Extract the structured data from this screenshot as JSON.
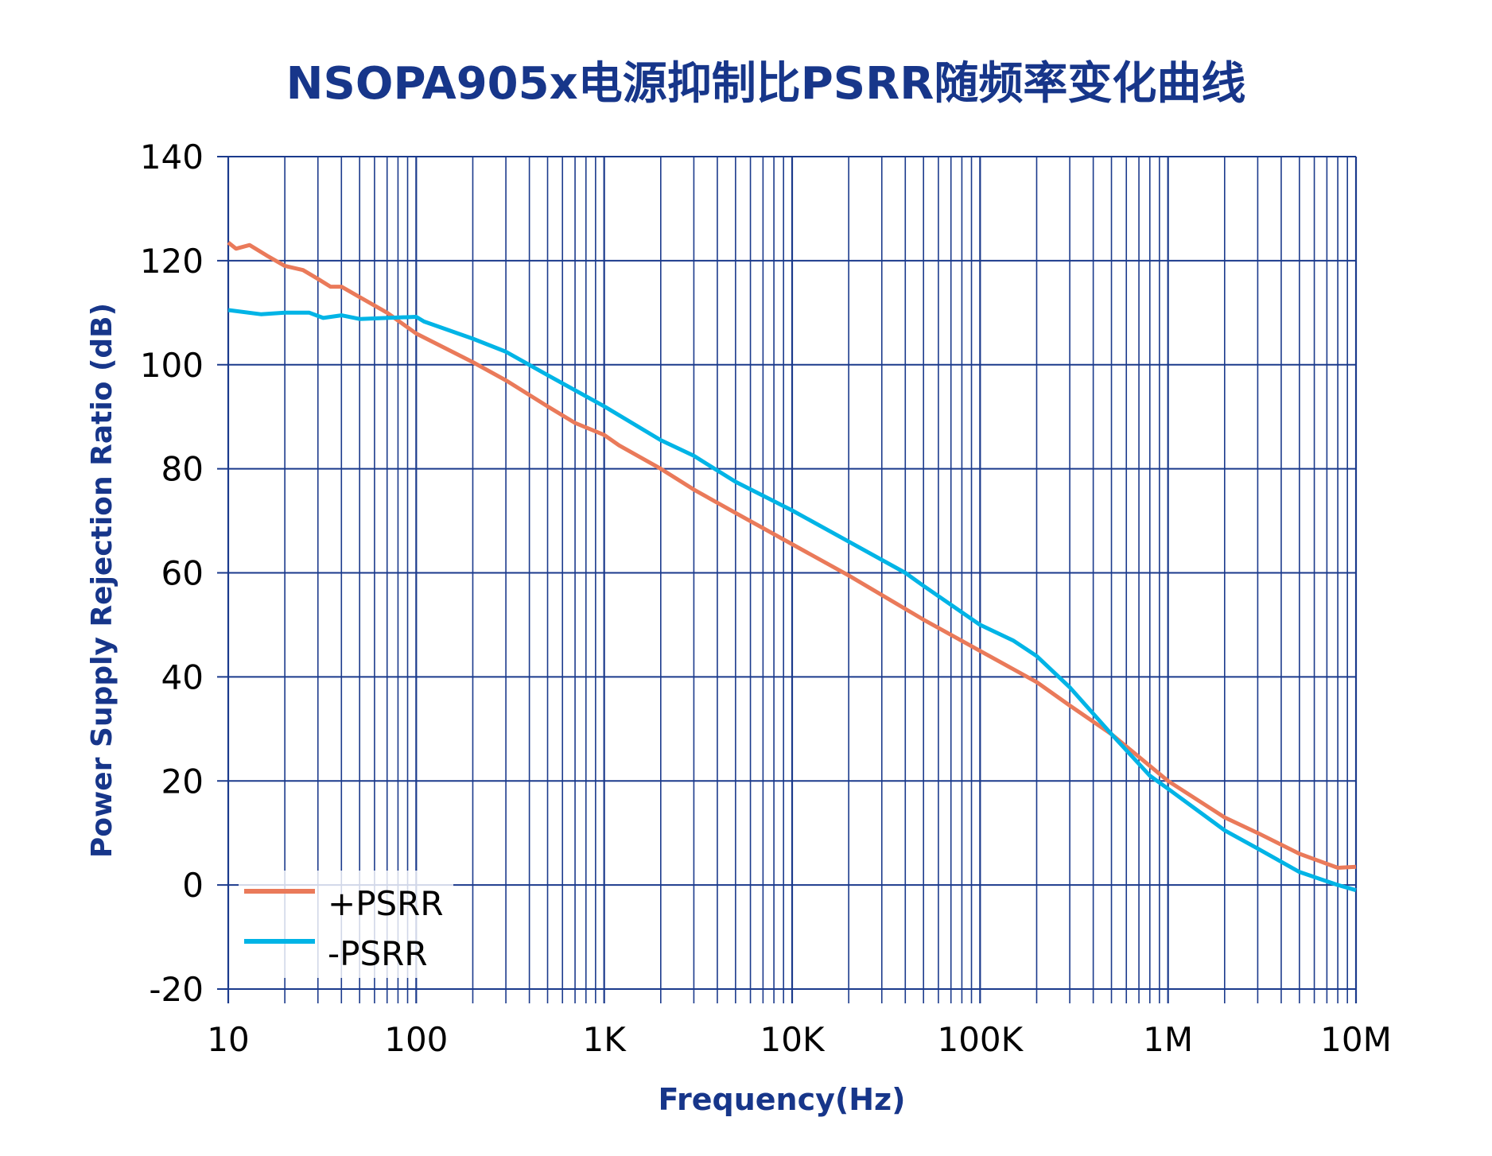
{
  "chart_data": {
    "type": "line",
    "title": "NSOPA905x电源抑制比PSRR随频率变化曲线",
    "xlabel": "Frequency(Hz)",
    "ylabel": "Power Supply Rejection Ratio (dB)",
    "x_scale": "log",
    "xlim": [
      10,
      10000000
    ],
    "ylim": [
      -20,
      140
    ],
    "x_ticks": [
      10,
      100,
      1000,
      10000,
      100000,
      1000000,
      10000000
    ],
    "x_tick_labels": [
      "10",
      "100",
      "1K",
      "10K",
      "100K",
      "1M",
      "10M"
    ],
    "y_ticks": [
      -20,
      0,
      20,
      40,
      60,
      80,
      100,
      120,
      140
    ],
    "y_tick_labels": [
      "-20",
      "0",
      "20",
      "40",
      "60",
      "80",
      "100",
      "120",
      "140"
    ],
    "grid": true,
    "legend_position": "bottom-left",
    "colors": {
      "grid": "#1b3a8c",
      "title": "#17368a",
      "plus": "#ea7a5a",
      "minus": "#00b4e6"
    },
    "series": [
      {
        "name": "+PSRR",
        "x": [
          10,
          11,
          13,
          16,
          20,
          25,
          30,
          35,
          40,
          50,
          70,
          100,
          200,
          300,
          500,
          700,
          1000,
          1200,
          2000,
          3000,
          5000,
          10000,
          20000,
          50000,
          100000,
          200000,
          300000,
          500000,
          1000000,
          2000000,
          3000000,
          5000000,
          8000000,
          10000000
        ],
        "y": [
          123.5,
          122.3,
          123,
          121,
          119,
          118.2,
          116.5,
          115,
          115,
          113,
          110,
          106,
          100.5,
          97,
          92,
          88.8,
          86.5,
          84.5,
          80,
          76,
          71.5,
          65.5,
          59.5,
          51,
          45,
          39,
          34.5,
          29,
          20,
          13,
          10,
          6,
          3.3,
          3.5
        ]
      },
      {
        "name": "-PSRR",
        "x": [
          10,
          15,
          20,
          27,
          32,
          40,
          50,
          70,
          100,
          110,
          200,
          300,
          500,
          1000,
          2000,
          3000,
          5000,
          10000,
          20000,
          40000,
          50000,
          100000,
          150000,
          200000,
          300000,
          500000,
          800000,
          1000000,
          2000000,
          3000000,
          5000000,
          8000000,
          10000000
        ],
        "y": [
          110.5,
          109.7,
          110,
          110,
          109,
          109.5,
          108.8,
          109,
          109.2,
          108.3,
          105,
          102.5,
          98,
          92,
          85.5,
          82.5,
          77.5,
          72,
          66,
          60,
          57.5,
          50,
          47,
          44,
          38,
          29,
          21,
          18.5,
          10.5,
          7,
          2.5,
          0,
          -1
        ]
      }
    ]
  }
}
